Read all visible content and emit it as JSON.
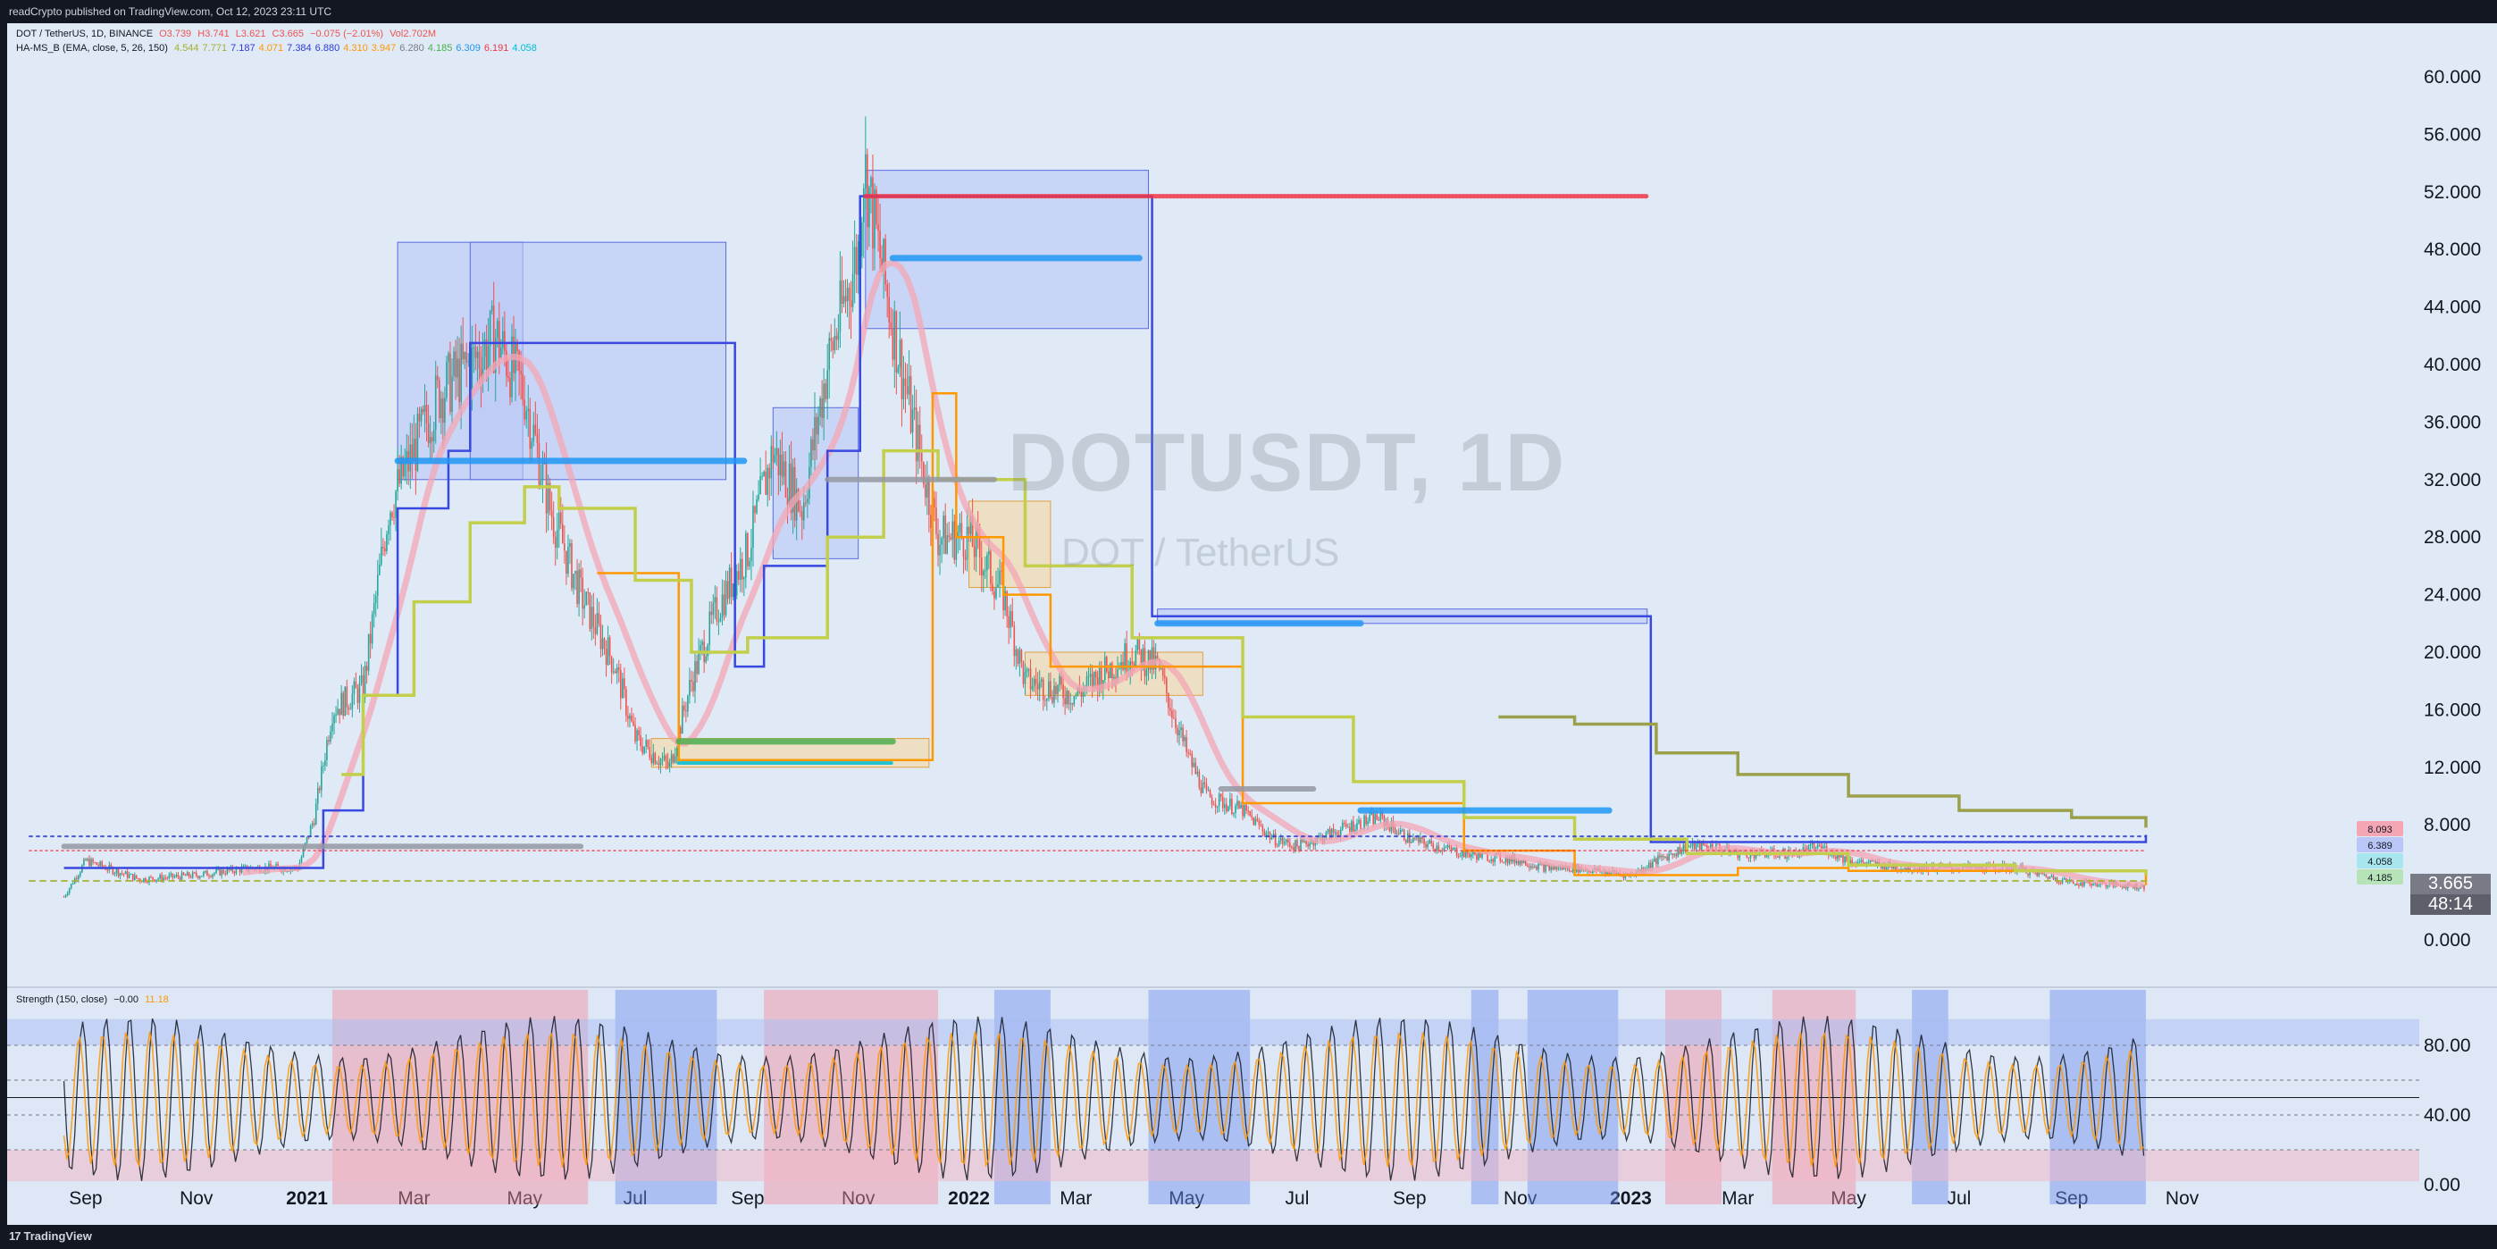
{
  "header": {
    "published_by": "readCrypto published on TradingView.com, Oct 12, 2023 23:11 UTC"
  },
  "footer": {
    "brand": "TradingView",
    "brand_mark": "17"
  },
  "legend": {
    "symbol_line": {
      "symbol": "DOT / TetherUS, 1D, BINANCE",
      "open": "O3.739",
      "high": "H3.741",
      "low": "L3.621",
      "close": "C3.665",
      "change": "−0.075 (−2.01%)",
      "volume": "Vol2.702M"
    },
    "indicator_line": {
      "name": "HA-MS_B (EMA, close, 5, 26, 150)",
      "values": [
        {
          "v": "4.544",
          "color": "#a5b02c"
        },
        {
          "v": "7.771",
          "color": "#a5b02c"
        },
        {
          "v": "7.187",
          "color": "#2e3bd6"
        },
        {
          "v": "4.071",
          "color": "#ff9800"
        },
        {
          "v": "7.384",
          "color": "#2e3bd6"
        },
        {
          "v": "6.880",
          "color": "#2e3bd6"
        },
        {
          "v": "4.310",
          "color": "#ff9800"
        },
        {
          "v": "3.947",
          "color": "#ff9800"
        },
        {
          "v": "6.280",
          "color": "#787b86"
        },
        {
          "v": "4.185",
          "color": "#4caf50"
        },
        {
          "v": "6.309",
          "color": "#2196f3"
        },
        {
          "v": "6.191",
          "color": "#f23645"
        },
        {
          "v": "4.058",
          "color": "#00bcd4"
        }
      ]
    },
    "strength_line": {
      "name": "Strength (150, close)",
      "v1": "−0.00",
      "v2": "11.18"
    }
  },
  "watermark": {
    "symbol": "DOTUSDT, 1D",
    "name": "DOT / TetherUS"
  },
  "price_badge": {
    "price": "3.665",
    "countdown": "48:14"
  },
  "right_markers": [
    "8.093",
    "6.389",
    "4.058",
    "4.185"
  ],
  "colors": {
    "background": "#dfeaf6",
    "candle_up": "#26a69a",
    "candle_down": "#ef5350",
    "ema_long": "#c3cf4a",
    "ema_mid": "#f4a6b4",
    "step_blue": "#3848e0",
    "step_orange": "#ff9800",
    "box_fill": "#b9c6f7",
    "box_orange": "#f6d7a3"
  },
  "chart_data": [
    {
      "type": "line",
      "title": "DOTUSDT, 1D",
      "subtitle": "DOT / TetherUS",
      "ylabel": "",
      "xlabel": "",
      "ylim": [
        -1,
        62
      ],
      "yticks": [
        "60.000",
        "56.000",
        "52.000",
        "48.000",
        "44.000",
        "40.000",
        "36.000",
        "32.000",
        "28.000",
        "24.000",
        "20.000",
        "16.000",
        "12.000",
        "8.000",
        "4.000",
        "0.000"
      ],
      "xticks": [
        {
          "label": "Sep",
          "bold": false
        },
        {
          "label": "Nov",
          "bold": false
        },
        {
          "label": "2021",
          "bold": true
        },
        {
          "label": "Mar",
          "bold": false
        },
        {
          "label": "May",
          "bold": false
        },
        {
          "label": "Jul",
          "bold": false
        },
        {
          "label": "Sep",
          "bold": false
        },
        {
          "label": "Nov",
          "bold": false
        },
        {
          "label": "2022",
          "bold": true
        },
        {
          "label": "Mar",
          "bold": false
        },
        {
          "label": "May",
          "bold": false
        },
        {
          "label": "Jul",
          "bold": false
        },
        {
          "label": "Sep",
          "bold": false
        },
        {
          "label": "Nov",
          "bold": false
        },
        {
          "label": "2023",
          "bold": true
        },
        {
          "label": "Mar",
          "bold": false
        },
        {
          "label": "May",
          "bold": false
        },
        {
          "label": "Jul",
          "bold": false
        },
        {
          "label": "Sep",
          "bold": false
        },
        {
          "label": "Nov",
          "bold": false
        }
      ],
      "series": [
        {
          "name": "Close",
          "dates": [
            "2020-08-20",
            "2020-09-01",
            "2020-10-01",
            "2020-11-01",
            "2020-12-01",
            "2020-12-27",
            "2021-01-05",
            "2021-01-15",
            "2021-02-01",
            "2021-02-15",
            "2021-03-01",
            "2021-03-15",
            "2021-04-01",
            "2021-04-15",
            "2021-05-01",
            "2021-05-15",
            "2021-06-01",
            "2021-06-20",
            "2021-07-01",
            "2021-07-20",
            "2021-08-01",
            "2021-08-15",
            "2021-09-01",
            "2021-09-15",
            "2021-10-01",
            "2021-10-15",
            "2021-11-01",
            "2021-11-04",
            "2021-11-15",
            "2021-12-01",
            "2021-12-15",
            "2022-01-01",
            "2022-01-20",
            "2022-02-01",
            "2022-03-01",
            "2022-03-15",
            "2022-04-01",
            "2022-04-15",
            "2022-05-01",
            "2022-05-12",
            "2022-06-01",
            "2022-06-18",
            "2022-07-01",
            "2022-08-01",
            "2022-08-15",
            "2022-09-01",
            "2022-10-01",
            "2022-11-01",
            "2022-11-15",
            "2022-12-01",
            "2023-01-01",
            "2023-01-15",
            "2023-02-01",
            "2023-02-15",
            "2023-03-01",
            "2023-04-01",
            "2023-04-15",
            "2023-05-01",
            "2023-06-01",
            "2023-06-15",
            "2023-07-01",
            "2023-08-01",
            "2023-09-01",
            "2023-10-01",
            "2023-10-12"
          ],
          "values": [
            3.0,
            5.5,
            4.2,
            4.5,
            5.0,
            5.0,
            8.5,
            16.0,
            17.5,
            30.0,
            34.0,
            38.0,
            40.0,
            42.0,
            38.0,
            30.0,
            24.0,
            19.0,
            14.0,
            12.0,
            18.0,
            23.0,
            27.0,
            34.0,
            30.0,
            40.0,
            48.0,
            54.0,
            46.0,
            36.0,
            28.0,
            28.0,
            24.0,
            18.0,
            17.0,
            18.5,
            20.0,
            19.0,
            13.0,
            10.0,
            9.0,
            7.0,
            6.5,
            8.0,
            8.5,
            7.0,
            6.0,
            5.5,
            5.0,
            5.0,
            4.5,
            5.5,
            6.5,
            6.5,
            6.0,
            6.0,
            6.5,
            5.5,
            5.0,
            5.0,
            5.0,
            5.0,
            4.0,
            3.8,
            3.665
          ]
        }
      ],
      "horizontal_levels": [
        {
          "name": "red-dotted-high",
          "value": 51.7,
          "x_start": "2021-11-05",
          "x_end": "2023-01-10"
        },
        {
          "name": "blue-level-1",
          "value": 33.3,
          "x_start": "2021-02-20",
          "x_end": "2021-08-30"
        },
        {
          "name": "blue-level-2",
          "value": 47.4,
          "x_start": "2021-11-20",
          "x_end": "2022-04-05"
        },
        {
          "name": "blue-level-3",
          "value": 22.0,
          "x_start": "2022-04-15",
          "x_end": "2022-08-05"
        },
        {
          "name": "blue-level-4",
          "value": 9.0,
          "x_start": "2022-08-05",
          "x_end": "2022-12-20"
        },
        {
          "name": "grey-level-1",
          "value": 32.0,
          "x_start": "2021-10-15",
          "x_end": "2022-01-15"
        },
        {
          "name": "grey-level-2",
          "value": 10.5,
          "x_start": "2022-05-20",
          "x_end": "2022-07-10"
        },
        {
          "name": "grey-level-3",
          "value": 6.5,
          "x_start": "2020-08-20",
          "x_end": "2021-06-01"
        },
        {
          "name": "green-level-1",
          "value": 13.8,
          "x_start": "2021-07-25",
          "x_end": "2021-11-20"
        },
        {
          "name": "cyan-level-1",
          "value": 12.3,
          "x_start": "2021-07-25",
          "x_end": "2021-11-20"
        },
        {
          "name": "blue-dotted-current",
          "value": 7.2,
          "x_start": "2020-08-01",
          "x_end": "2023-10-12"
        },
        {
          "name": "olive-dashed-current",
          "value": 4.1,
          "x_start": "2020-08-01",
          "x_end": "2023-10-12"
        },
        {
          "name": "red-dotted-current",
          "value": 6.2,
          "x_start": "2020-08-01",
          "x_end": "2023-10-12"
        }
      ],
      "step_lines": [
        {
          "name": "HA-MS blue step",
          "color": "#3848e0",
          "dates": [
            "2020-08-20",
            "2020-12-27",
            "2021-01-10",
            "2021-02-01",
            "2021-02-20",
            "2021-03-20",
            "2021-04-01",
            "2021-08-05",
            "2021-08-25",
            "2021-09-10",
            "2021-10-15",
            "2021-11-02",
            "2021-11-15",
            "2022-04-10",
            "2022-04-12",
            "2023-01-10",
            "2023-01-12",
            "2023-10-12"
          ],
          "values": [
            5.0,
            5.0,
            9.0,
            17.0,
            30.0,
            34.0,
            41.5,
            41.5,
            19.0,
            26.0,
            34.0,
            51.7,
            51.7,
            51.7,
            22.5,
            22.5,
            6.8,
            7.3
          ]
        },
        {
          "name": "HA-MS orange step",
          "color": "#ff9800",
          "dates": [
            "2021-06-10",
            "2021-07-10",
            "2021-07-25",
            "2021-12-10",
            "2021-12-12",
            "2021-12-25",
            "2022-01-20",
            "2022-02-15",
            "2022-06-01",
            "2022-10-01",
            "2022-12-01",
            "2023-01-15",
            "2023-03-01",
            "2023-05-01",
            "2023-10-12"
          ],
          "values": [
            25.5,
            25.5,
            12.5,
            12.5,
            38.0,
            28.0,
            24.0,
            19.0,
            9.5,
            6.2,
            4.5,
            4.5,
            5.0,
            4.8,
            3.8
          ]
        },
        {
          "name": "EMA 150 (olive)",
          "color": "#c3cf4a",
          "dates": [
            "2021-01-20",
            "2021-02-01",
            "2021-03-01",
            "2021-04-01",
            "2021-05-01",
            "2021-05-20",
            "2021-07-01",
            "2021-08-01",
            "2021-09-01",
            "2021-10-15",
            "2021-11-15",
            "2021-12-15",
            "2022-02-01",
            "2022-04-01",
            "2022-06-01",
            "2022-08-01",
            "2022-10-01",
            "2022-12-01",
            "2023-02-01",
            "2023-05-01",
            "2023-08-01",
            "2023-10-12"
          ],
          "values": [
            11.5,
            17.0,
            23.5,
            29.0,
            31.5,
            30.0,
            25.0,
            20.0,
            21.0,
            28.0,
            34.0,
            32.0,
            26.0,
            21.0,
            15.5,
            11.0,
            8.5,
            7.0,
            6.0,
            5.2,
            4.8,
            4.5
          ]
        },
        {
          "name": "HA-MS olive step (upper)",
          "color": "#9ba04a",
          "dates": [
            "2022-10-20",
            "2022-12-01",
            "2023-01-15",
            "2023-03-01",
            "2023-05-01",
            "2023-07-01",
            "2023-09-01",
            "2023-10-12"
          ],
          "values": [
            15.5,
            15.0,
            13.0,
            11.5,
            10.0,
            9.0,
            8.5,
            7.8
          ]
        }
      ],
      "range_boxes": [
        {
          "x_start": "2021-02-20",
          "x_end": "2021-04-30",
          "y_low": 32.0,
          "y_high": 48.5,
          "color": "#b9c6f7"
        },
        {
          "x_start": "2021-04-01",
          "x_end": "2021-08-20",
          "y_low": 32.0,
          "y_high": 48.5,
          "color": "#b9c6f7"
        },
        {
          "x_start": "2021-11-05",
          "x_end": "2022-04-10",
          "y_low": 42.5,
          "y_high": 53.5,
          "color": "#b9c6f7"
        },
        {
          "x_start": "2022-04-15",
          "x_end": "2023-01-10",
          "y_low": 22.0,
          "y_high": 23.0,
          "color": "#b9c6f7"
        },
        {
          "x_start": "2021-09-15",
          "x_end": "2021-11-01",
          "y_low": 26.5,
          "y_high": 37.0,
          "color": "#b9c6f7"
        },
        {
          "x_start": "2021-07-10",
          "x_end": "2021-12-10",
          "y_low": 12.0,
          "y_high": 14.0,
          "color": "#f6d7a3"
        },
        {
          "x_start": "2022-02-01",
          "x_end": "2022-05-10",
          "y_low": 17.0,
          "y_high": 20.0,
          "color": "#f6d7a3"
        },
        {
          "x_start": "2022-01-01",
          "x_end": "2022-02-15",
          "y_low": 24.5,
          "y_high": 30.5,
          "color": "#f6d7a3"
        }
      ]
    },
    {
      "type": "line",
      "title": "Strength (150, close)",
      "ylim": [
        -10,
        110
      ],
      "yticks": [
        "80.00",
        "40.00",
        "0.00"
      ],
      "series": [
        {
          "name": "Strength",
          "cycle_days": 13,
          "min": 2,
          "max": 97,
          "color": "#131722"
        },
        {
          "name": "Signal",
          "cycle_days": 13,
          "min": 10,
          "max": 88,
          "color": "#ff9800"
        }
      ],
      "red_zones": [
        [
          "2021-01-15",
          "2021-06-05"
        ],
        [
          "2021-09-10",
          "2021-12-15"
        ],
        [
          "2023-01-20",
          "2023-02-20"
        ],
        [
          "2023-03-20",
          "2023-05-05"
        ]
      ],
      "blue_zones": [
        [
          "2021-06-20",
          "2021-08-15"
        ],
        [
          "2022-01-15",
          "2022-02-15"
        ],
        [
          "2022-04-10",
          "2022-06-05"
        ],
        [
          "2022-10-05",
          "2022-10-20"
        ],
        [
          "2022-11-05",
          "2022-12-25"
        ],
        [
          "2023-06-05",
          "2023-06-25"
        ],
        [
          "2023-08-20",
          "2023-10-12"
        ]
      ]
    }
  ]
}
